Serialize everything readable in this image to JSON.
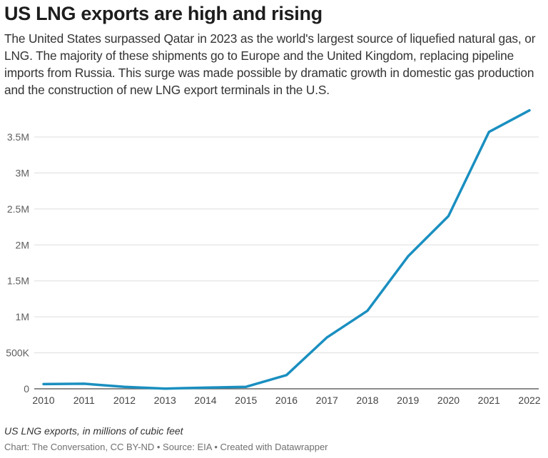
{
  "header": {
    "title": "US LNG exports are high and rising",
    "description": "The United States surpassed Qatar in 2023 as the world's largest source of liquefied natural gas, or LNG. The majority of these shipments go to Europe and the United Kingdom, replacing pipeline imports from Russia. This surge was made possible by dramatic growth in domestic gas production and the construction of new LNG export terminals in the U.S."
  },
  "footer": {
    "note": "US LNG exports, in millions of cubic feet",
    "credit": "Chart: The Conversation, CC BY-ND",
    "separator": " • ",
    "source": "Source: EIA",
    "created": "Created with Datawrapper"
  },
  "colors": {
    "line": "#1a8fc0",
    "grid": "#dddddd",
    "baseline": "#666666",
    "tick_text": "#5e5e5e"
  },
  "chart_data": {
    "type": "line",
    "title": "US LNG exports are high and rising",
    "xlabel": "",
    "ylabel": "US LNG exports, in millions of cubic feet",
    "x": [
      "2010",
      "2011",
      "2012",
      "2013",
      "2014",
      "2015",
      "2016",
      "2017",
      "2018",
      "2019",
      "2020",
      "2021",
      "2022"
    ],
    "series": [
      {
        "name": "US LNG exports",
        "values": [
          65000,
          70000,
          28000,
          3000,
          16000,
          28000,
          190000,
          715000,
          1085000,
          1840000,
          2400000,
          3570000,
          3870000
        ]
      }
    ],
    "ylim": [
      0,
      3500000
    ],
    "yticks": [
      0,
      500000,
      1000000,
      1500000,
      2000000,
      2500000,
      3000000,
      3500000
    ],
    "ytick_labels": [
      "0",
      "500K",
      "1M",
      "1.5M",
      "2M",
      "2.5M",
      "3M",
      "3.5M"
    ],
    "grid": true,
    "legend": "none"
  }
}
